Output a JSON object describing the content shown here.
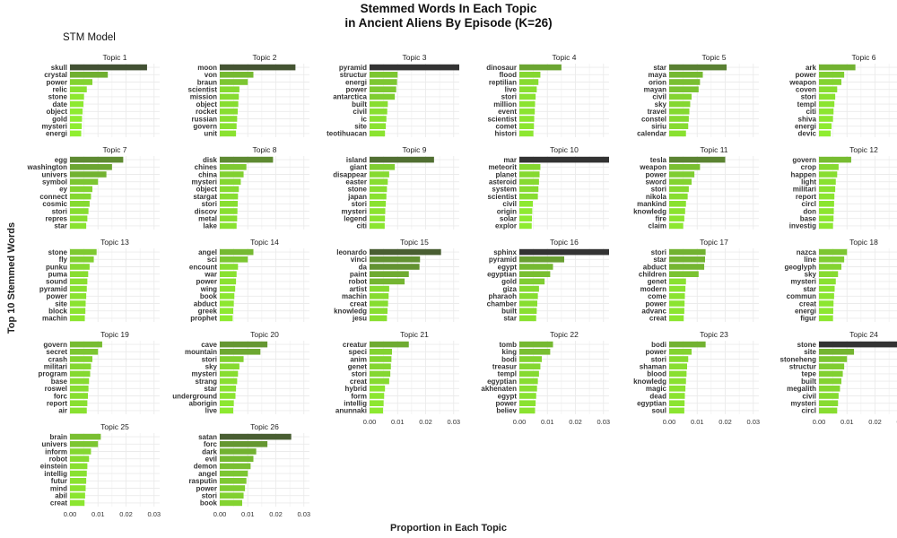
{
  "title_line1": "Stemmed Words In Each Topic",
  "title_line2": "in Ancient Aliens By Episode (K=26)",
  "subtitle": "STM Model",
  "colors": {
    "low": "#90ee30",
    "high": "#333333",
    "grid": "#ebebeb"
  },
  "chart_data": {
    "type": "bar",
    "orientation": "horizontal",
    "title": "Stemmed Words In Each Topic in Ancient Aliens By Episode (K=26)",
    "xlabel": "Proportion in Each Topic",
    "ylabel": "Top 10 Stemmed Words",
    "xlim": [
      0,
      0.032
    ],
    "xticks": [
      "0.00",
      "0.01",
      "0.02",
      "0.03"
    ],
    "grid": true,
    "legend": "none",
    "color_scale": "proportion: green (low) to dark gray (high)",
    "facets": [
      {
        "title": "Topic 1",
        "words": [
          "skull",
          "crystal",
          "power",
          "relic",
          "stone",
          "date",
          "object",
          "gold",
          "mysteri",
          "energi"
        ],
        "values": [
          0.0275,
          0.0135,
          0.008,
          0.006,
          0.005,
          0.0048,
          0.0045,
          0.0043,
          0.0042,
          0.004
        ]
      },
      {
        "title": "Topic 2",
        "words": [
          "moon",
          "von",
          "braun",
          "scientist",
          "mission",
          "object",
          "rocket",
          "russian",
          "govern",
          "unit"
        ],
        "values": [
          0.027,
          0.012,
          0.01,
          0.007,
          0.0068,
          0.0066,
          0.0064,
          0.0062,
          0.006,
          0.0058
        ]
      },
      {
        "title": "Topic 3",
        "words": [
          "pyramid",
          "structur",
          "energi",
          "power",
          "antarctica",
          "built",
          "civil",
          "ic",
          "site",
          "teotihuacan"
        ],
        "values": [
          0.032,
          0.01,
          0.0098,
          0.0095,
          0.009,
          0.0065,
          0.0063,
          0.006,
          0.0058,
          0.0055
        ]
      },
      {
        "title": "Topic 4",
        "words": [
          "dinosaur",
          "flood",
          "reptilian",
          "live",
          "stori",
          "million",
          "event",
          "scientist",
          "comet",
          "histori"
        ],
        "values": [
          0.015,
          0.0075,
          0.0068,
          0.0062,
          0.0058,
          0.0056,
          0.0055,
          0.0053,
          0.0052,
          0.005
        ]
      },
      {
        "title": "Topic 5",
        "words": [
          "star",
          "maya",
          "orion",
          "mayan",
          "civil",
          "sky",
          "travel",
          "constel",
          "siriu",
          "calendar"
        ],
        "values": [
          0.0205,
          0.012,
          0.011,
          0.0105,
          0.008,
          0.0075,
          0.0072,
          0.007,
          0.0068,
          0.006
        ]
      },
      {
        "title": "Topic 6",
        "words": [
          "ark",
          "power",
          "weapon",
          "coven",
          "stori",
          "templ",
          "citi",
          "shiva",
          "energi",
          "devic"
        ],
        "values": [
          0.013,
          0.009,
          0.008,
          0.0065,
          0.0058,
          0.0055,
          0.0052,
          0.005,
          0.0045,
          0.0042
        ]
      },
      {
        "title": "Topic 7",
        "words": [
          "egg",
          "washington",
          "univers",
          "symbol",
          "ey",
          "connect",
          "cosmic",
          "stori",
          "repres",
          "star"
        ],
        "values": [
          0.019,
          0.015,
          0.013,
          0.01,
          0.008,
          0.0075,
          0.007,
          0.0066,
          0.0062,
          0.0058
        ]
      },
      {
        "title": "Topic 8",
        "words": [
          "disk",
          "chines",
          "china",
          "mysteri",
          "object",
          "stargat",
          "stori",
          "discov",
          "metal",
          "lake"
        ],
        "values": [
          0.019,
          0.0095,
          0.0085,
          0.0075,
          0.0068,
          0.0065,
          0.0064,
          0.0063,
          0.0062,
          0.006
        ]
      },
      {
        "title": "Topic 9",
        "words": [
          "island",
          "giant",
          "disappear",
          "easter",
          "stone",
          "japan",
          "stori",
          "mysteri",
          "legend",
          "citi"
        ],
        "values": [
          0.023,
          0.009,
          0.007,
          0.0065,
          0.0062,
          0.006,
          0.0058,
          0.0056,
          0.0055,
          0.0054
        ]
      },
      {
        "title": "Topic 10",
        "words": [
          "mar",
          "meteorit",
          "planet",
          "asteroid",
          "system",
          "scientist",
          "civil",
          "origin",
          "solar",
          "explor"
        ],
        "values": [
          0.032,
          0.0075,
          0.0072,
          0.007,
          0.0068,
          0.0066,
          0.0048,
          0.0046,
          0.0045,
          0.0044
        ]
      },
      {
        "title": "Topic 11",
        "words": [
          "tesla",
          "weapon",
          "power",
          "sword",
          "stori",
          "nikola",
          "mankind",
          "knowledg",
          "fire",
          "claim"
        ],
        "values": [
          0.02,
          0.011,
          0.009,
          0.008,
          0.007,
          0.0066,
          0.006,
          0.0057,
          0.0054,
          0.005
        ]
      },
      {
        "title": "Topic 12",
        "words": [
          "govern",
          "crop",
          "happen",
          "light",
          "militari",
          "report",
          "circl",
          "don",
          "base",
          "investig"
        ],
        "values": [
          0.0115,
          0.007,
          0.0065,
          0.006,
          0.0058,
          0.0055,
          0.0054,
          0.0053,
          0.0052,
          0.005
        ]
      },
      {
        "title": "Topic 13",
        "words": [
          "stone",
          "fly",
          "punku",
          "puma",
          "sound",
          "pyramid",
          "power",
          "site",
          "block",
          "machin"
        ],
        "values": [
          0.0095,
          0.0085,
          0.007,
          0.0065,
          0.0062,
          0.006,
          0.0058,
          0.0056,
          0.0055,
          0.0053
        ]
      },
      {
        "title": "Topic 14",
        "words": [
          "angel",
          "sci",
          "encount",
          "war",
          "power",
          "wing",
          "book",
          "abduct",
          "greek",
          "prophet"
        ],
        "values": [
          0.012,
          0.01,
          0.0065,
          0.006,
          0.0058,
          0.0055,
          0.0052,
          0.005,
          0.0048,
          0.0046
        ]
      },
      {
        "title": "Topic 15",
        "words": [
          "leonardo",
          "vinci",
          "da",
          "paint",
          "robot",
          "artist",
          "machin",
          "creat",
          "knowledg",
          "jesu"
        ],
        "values": [
          0.0255,
          0.018,
          0.0178,
          0.014,
          0.0125,
          0.007,
          0.0068,
          0.0066,
          0.0064,
          0.0062
        ]
      },
      {
        "title": "Topic 16",
        "words": [
          "sphinx",
          "pyramid",
          "egypt",
          "egyptian",
          "gold",
          "giza",
          "pharaoh",
          "chamber",
          "built",
          "star"
        ],
        "values": [
          0.032,
          0.016,
          0.012,
          0.011,
          0.009,
          0.007,
          0.0066,
          0.0064,
          0.0062,
          0.006
        ]
      },
      {
        "title": "Topic 17",
        "words": [
          "stori",
          "star",
          "abduct",
          "children",
          "genet",
          "modern",
          "come",
          "power",
          "advanc",
          "creat"
        ],
        "values": [
          0.013,
          0.0128,
          0.0125,
          0.0105,
          0.006,
          0.0058,
          0.0056,
          0.0055,
          0.0054,
          0.0052
        ]
      },
      {
        "title": "Topic 18",
        "words": [
          "nazca",
          "line",
          "geoglyph",
          "sky",
          "mysteri",
          "star",
          "commun",
          "creat",
          "energi",
          "figur"
        ],
        "values": [
          0.01,
          0.009,
          0.008,
          0.0068,
          0.006,
          0.0056,
          0.0054,
          0.0052,
          0.0051,
          0.005
        ]
      },
      {
        "title": "Topic 19",
        "words": [
          "govern",
          "secret",
          "crash",
          "militari",
          "program",
          "base",
          "roswel",
          "forc",
          "report",
          "air"
        ],
        "values": [
          0.0115,
          0.01,
          0.008,
          0.0075,
          0.0072,
          0.0068,
          0.0066,
          0.0064,
          0.0062,
          0.006
        ]
      },
      {
        "title": "Topic 20",
        "words": [
          "cave",
          "mountain",
          "stori",
          "sky",
          "mysteri",
          "strang",
          "star",
          "underground",
          "aborigin",
          "live"
        ],
        "values": [
          0.017,
          0.0145,
          0.0085,
          0.007,
          0.0065,
          0.0062,
          0.0058,
          0.0056,
          0.005,
          0.0048
        ]
      },
      {
        "title": "Topic 21",
        "words": [
          "creatur",
          "speci",
          "anim",
          "genet",
          "stori",
          "creat",
          "hybrid",
          "form",
          "intellig",
          "anunnaki"
        ],
        "values": [
          0.014,
          0.008,
          0.0078,
          0.0076,
          0.0074,
          0.007,
          0.0055,
          0.0052,
          0.005,
          0.0048
        ]
      },
      {
        "title": "Topic 22",
        "words": [
          "tomb",
          "king",
          "bodi",
          "treasur",
          "templ",
          "egyptian",
          "akhenaten",
          "egypt",
          "power",
          "believ"
        ],
        "values": [
          0.012,
          0.011,
          0.008,
          0.0075,
          0.007,
          0.0066,
          0.0063,
          0.006,
          0.0058,
          0.0056
        ]
      },
      {
        "title": "Topic 23",
        "words": [
          "bodi",
          "power",
          "stori",
          "shaman",
          "blood",
          "knowledg",
          "magic",
          "dead",
          "egyptian",
          "soul"
        ],
        "values": [
          0.013,
          0.008,
          0.0068,
          0.0064,
          0.0062,
          0.006,
          0.0058,
          0.0056,
          0.0055,
          0.0054
        ]
      },
      {
        "title": "Topic 24",
        "words": [
          "stone",
          "site",
          "stoneheng",
          "structur",
          "tepe",
          "built",
          "megalith",
          "civil",
          "mysteri",
          "circl"
        ],
        "values": [
          0.032,
          0.0125,
          0.01,
          0.009,
          0.0085,
          0.008,
          0.0075,
          0.007,
          0.0068,
          0.0065
        ]
      },
      {
        "title": "Topic 25",
        "words": [
          "brain",
          "univers",
          "inform",
          "robot",
          "einstein",
          "intellig",
          "futur",
          "mind",
          "abil",
          "creat"
        ],
        "values": [
          0.011,
          0.01,
          0.0075,
          0.0068,
          0.0062,
          0.006,
          0.0058,
          0.0056,
          0.0054,
          0.0052
        ]
      },
      {
        "title": "Topic 26",
        "words": [
          "satan",
          "forc",
          "dark",
          "evil",
          "demon",
          "angel",
          "rasputin",
          "power",
          "stori",
          "book"
        ],
        "values": [
          0.0255,
          0.017,
          0.013,
          0.012,
          0.011,
          0.01,
          0.0095,
          0.009,
          0.0085,
          0.008
        ]
      }
    ]
  }
}
